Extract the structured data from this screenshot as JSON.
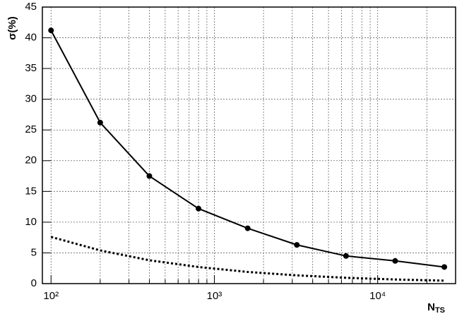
{
  "chart_data": {
    "type": "line",
    "xlabel": "N",
    "xlabel_sub": "TS",
    "ylabel": "σ(%)",
    "x": [
      100,
      200,
      400,
      800,
      1600,
      3200,
      6400,
      12800,
      25600
    ],
    "series": [
      {
        "color": "#000000",
        "style": "solid",
        "markers": true,
        "values": [
          41.2,
          26.2,
          17.5,
          12.2,
          9.0,
          6.3,
          4.5,
          3.7,
          2.7
        ]
      },
      {
        "color": "#000000",
        "style": "dotted",
        "markers": false,
        "values": [
          7.6,
          5.4,
          3.8,
          2.7,
          1.9,
          1.34,
          0.95,
          0.67,
          0.48
        ]
      }
    ],
    "xlog": true,
    "xlim": [
      88.5,
      30000
    ],
    "xticks": [
      {
        "value": 100,
        "label": "10²"
      },
      {
        "value": 1000,
        "label": "10³"
      },
      {
        "value": 10000,
        "label": "10⁴"
      }
    ],
    "xminorticks": [
      200,
      300,
      400,
      500,
      600,
      700,
      800,
      900,
      2000,
      3000,
      4000,
      5000,
      6000,
      7000,
      8000,
      9000,
      20000,
      30000
    ],
    "ylim": [
      0,
      45
    ],
    "yticks": [
      0,
      5,
      10,
      15,
      20,
      25,
      30,
      35,
      40,
      45
    ],
    "grid": true
  }
}
